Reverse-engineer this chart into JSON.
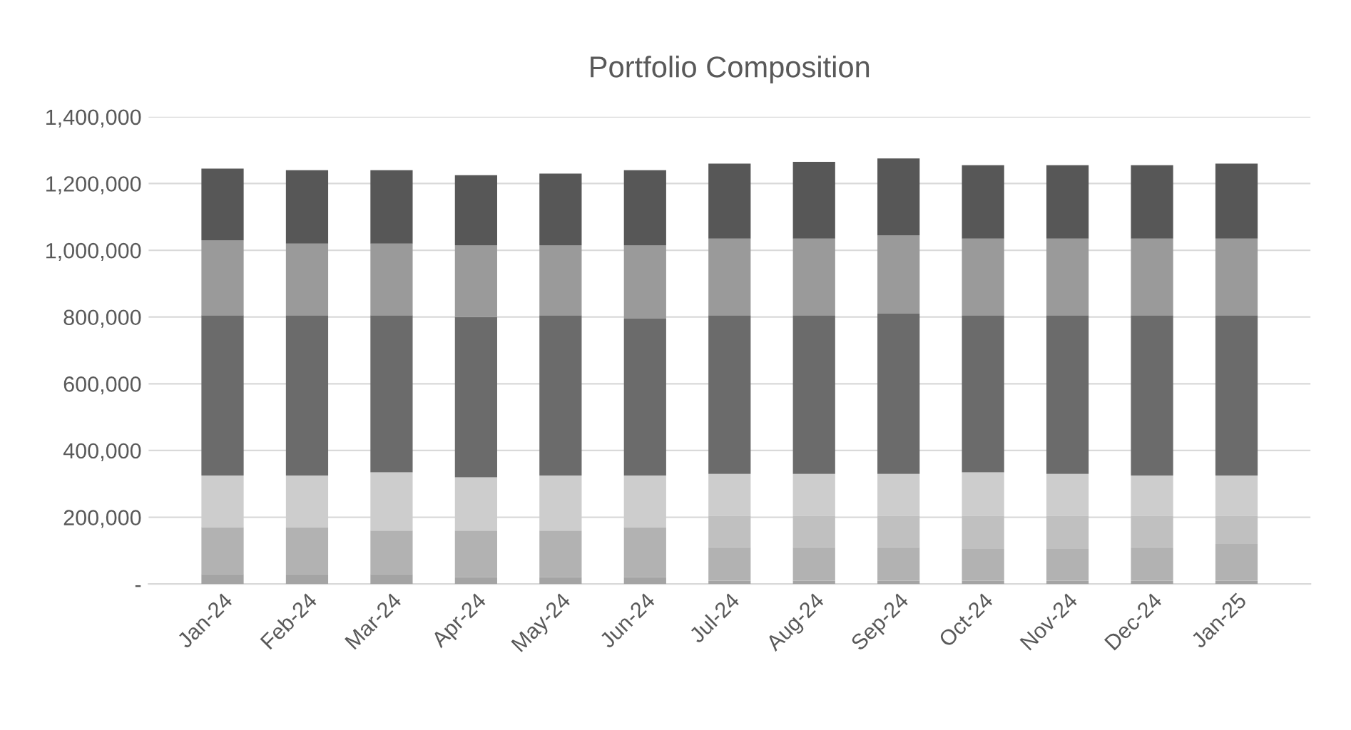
{
  "chart_data": {
    "type": "bar",
    "title": "Portfolio Composition",
    "stacked": true,
    "grid": "y",
    "categories": [
      "Jan-24",
      "Feb-24",
      "Mar-24",
      "Apr-24",
      "May-24",
      "Jun-24",
      "Jul-24",
      "Aug-24",
      "Sep-24",
      "Oct-24",
      "Nov-24",
      "Dec-24",
      "Jan-25"
    ],
    "series": [
      {
        "color": "#a4a4a4",
        "values": [
          30000,
          30000,
          30000,
          20000,
          20000,
          20000,
          10000,
          10000,
          10000,
          10000,
          10000,
          10000,
          10000
        ]
      },
      {
        "color": "#b2b2b2",
        "values": [
          140000,
          140000,
          130000,
          140000,
          140000,
          150000,
          100000,
          100000,
          100000,
          95000,
          95000,
          100000,
          110000
        ]
      },
      {
        "color": "#c0c0c0",
        "values": [
          0,
          0,
          0,
          0,
          0,
          0,
          95000,
          95000,
          95000,
          100000,
          100000,
          95000,
          85000
        ]
      },
      {
        "color": "#cdcdcd",
        "values": [
          155000,
          155000,
          175000,
          160000,
          165000,
          155000,
          125000,
          125000,
          125000,
          130000,
          125000,
          120000,
          120000
        ]
      },
      {
        "color": "#6b6b6b",
        "values": [
          480000,
          480000,
          470000,
          480000,
          480000,
          470000,
          475000,
          475000,
          480000,
          470000,
          475000,
          480000,
          480000
        ]
      },
      {
        "color": "#9a9a9a",
        "values": [
          225000,
          215000,
          215000,
          215000,
          210000,
          220000,
          230000,
          230000,
          235000,
          230000,
          230000,
          230000,
          230000
        ]
      },
      {
        "color": "#575757",
        "values": [
          215000,
          220000,
          220000,
          210000,
          215000,
          225000,
          225000,
          230000,
          230000,
          220000,
          220000,
          220000,
          225000
        ]
      }
    ],
    "ylim": [
      0,
      1400000
    ],
    "yticks": [
      {
        "value": 0,
        "label": "-"
      },
      {
        "value": 200000,
        "label": "200,000"
      },
      {
        "value": 400000,
        "label": "400,000"
      },
      {
        "value": 600000,
        "label": "600,000"
      },
      {
        "value": 800000,
        "label": "800,000"
      },
      {
        "value": 1000000,
        "label": "1,000,000"
      },
      {
        "value": 1200000,
        "label": "1,200,000"
      },
      {
        "value": 1400000,
        "label": "1,400,000"
      }
    ]
  }
}
